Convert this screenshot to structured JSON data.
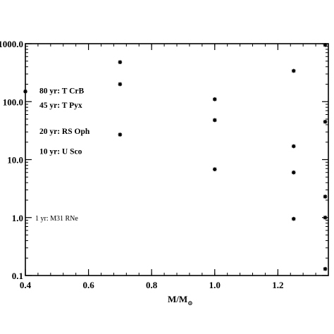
{
  "chart_data": {
    "type": "scatter",
    "xlim": [
      0.4,
      1.36
    ],
    "ylim": [
      0.1,
      1000
    ],
    "yscale": "log",
    "x_ticks": [
      {
        "value": 0.4,
        "label": "0.4"
      },
      {
        "value": 0.6,
        "label": "0.6"
      },
      {
        "value": 0.8,
        "label": "0.8"
      },
      {
        "value": 1.0,
        "label": "1.0"
      },
      {
        "value": 1.2,
        "label": "1.2"
      }
    ],
    "y_ticks": [
      {
        "value": 0.1,
        "label": "0.1"
      },
      {
        "value": 1,
        "label": "1.0"
      },
      {
        "value": 10,
        "label": "10.0"
      },
      {
        "value": 100,
        "label": "100.0"
      },
      {
        "value": 1000,
        "label": "1000.0"
      }
    ],
    "xlabel_main": "M/M",
    "xlabel_sub": "⊙",
    "ylabel": "",
    "grid": false,
    "marker": "asterisk",
    "points": [
      {
        "x": 0.4,
        "y": 150
      },
      {
        "x": 0.7,
        "y": 480
      },
      {
        "x": 0.7,
        "y": 200
      },
      {
        "x": 0.7,
        "y": 27
      },
      {
        "x": 1.0,
        "y": 110
      },
      {
        "x": 1.0,
        "y": 48
      },
      {
        "x": 1.0,
        "y": 6.8
      },
      {
        "x": 1.25,
        "y": 340
      },
      {
        "x": 1.25,
        "y": 17
      },
      {
        "x": 1.25,
        "y": 6.0
      },
      {
        "x": 1.25,
        "y": 0.95
      },
      {
        "x": 1.35,
        "y": 950
      },
      {
        "x": 1.35,
        "y": 45
      },
      {
        "x": 1.35,
        "y": 2.3
      },
      {
        "x": 1.35,
        "y": 1.0
      },
      {
        "x": 1.35,
        "y": 0.13
      }
    ],
    "annotations": [
      {
        "text": "80 yr: T CrB",
        "y": 155,
        "style": "bold"
      },
      {
        "text": "45 yr: T Pyx",
        "y": 88,
        "style": "bold"
      },
      {
        "text": "20 yr: RS Oph",
        "y": 31,
        "style": "bold"
      },
      {
        "text": "10 yr: U Sco",
        "y": 14,
        "style": "bold"
      },
      {
        "text": "1 yr: M31 RNe",
        "y": 1.0,
        "style": "small"
      }
    ]
  }
}
